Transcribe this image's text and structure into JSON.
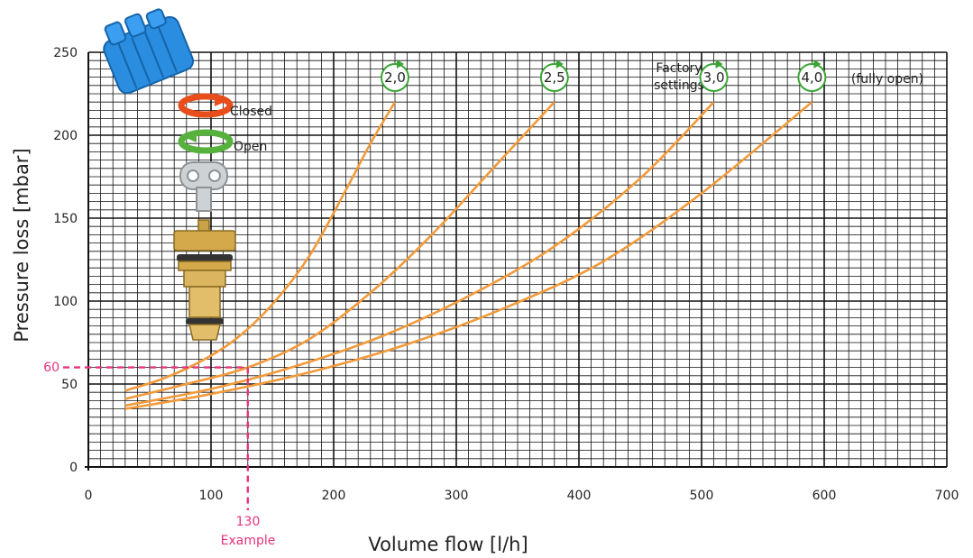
{
  "chart_data": {
    "type": "line",
    "xlabel": "Volume flow [l/h]",
    "ylabel": "Pressure loss [mbar]",
    "xlim": [
      0,
      700
    ],
    "ylim": [
      0,
      250
    ],
    "x_ticks": [
      "0",
      "100",
      "200",
      "300",
      "400",
      "500",
      "600",
      "700"
    ],
    "y_ticks": [
      "0",
      "50",
      "100",
      "150",
      "200",
      "250"
    ],
    "grid": true,
    "series": [
      {
        "name": "2,0",
        "x": [
          30,
          60,
          90,
          120,
          150,
          180,
          210,
          230,
          250
        ],
        "y": [
          46,
          53,
          63,
          77,
          98,
          127,
          167,
          195,
          220
        ]
      },
      {
        "name": "2,5",
        "x": [
          30,
          80,
          130,
          180,
          230,
          280,
          330,
          380
        ],
        "y": [
          41,
          50,
          60,
          77,
          105,
          140,
          180,
          220
        ]
      },
      {
        "name": "3,0",
        "x": [
          30,
          100,
          170,
          240,
          310,
          380,
          450,
          510
        ],
        "y": [
          37,
          47,
          61,
          79,
          103,
          133,
          174,
          220
        ]
      },
      {
        "name": "4,0",
        "x": [
          30,
          100,
          180,
          260,
          340,
          420,
          500,
          590
        ],
        "y": [
          35,
          44,
          57,
          74,
          96,
          124,
          165,
          220
        ]
      }
    ],
    "curve_labels": [
      "2,0",
      "2,5",
      "3,0",
      "4,0"
    ],
    "annotations": {
      "factory": "Factory\nsettings",
      "fully_open": "(fully open)",
      "closed": "Closed",
      "open": "Open",
      "example_y": "60",
      "example_x": "130",
      "example_label": "Example"
    },
    "example_point": {
      "x": 130,
      "y": 60
    },
    "colors": {
      "curve": "#f29a3a",
      "example": "#e8327c",
      "circle": "#3aa535",
      "grid": "#111111",
      "closed": "#e84e1b",
      "open": "#56b13d",
      "cap": "#2a8ddf"
    }
  }
}
